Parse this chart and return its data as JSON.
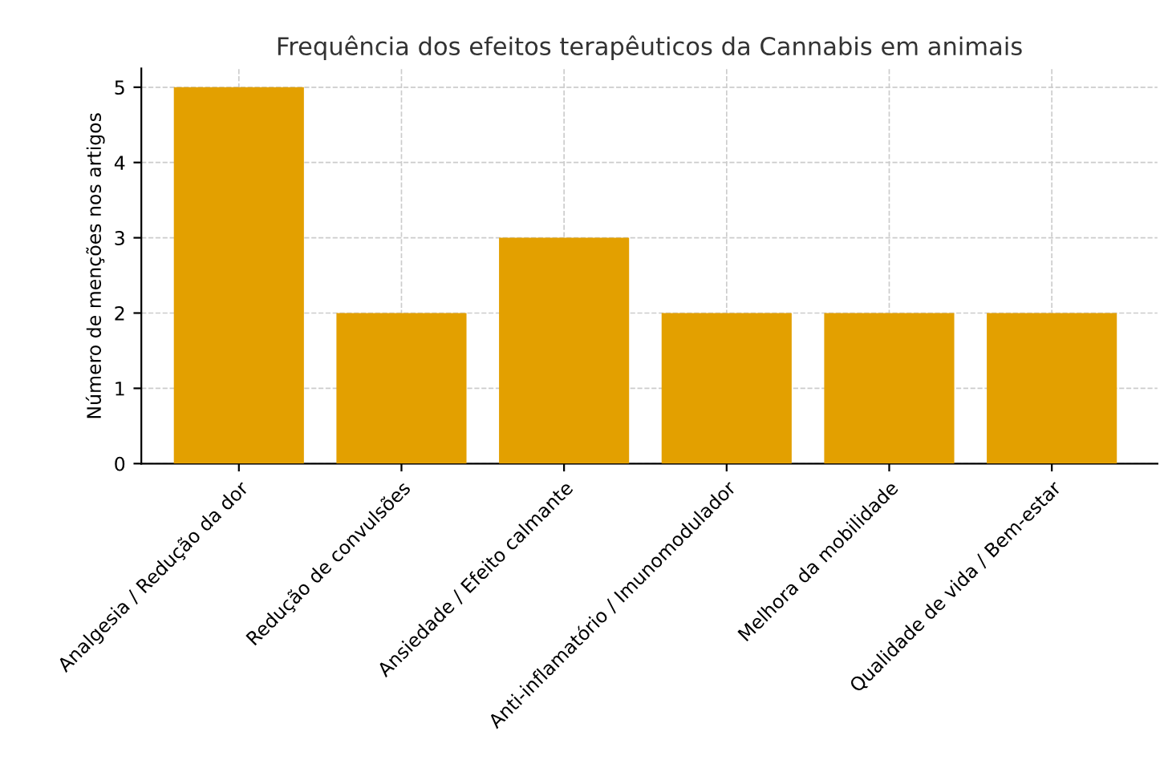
{
  "chart_data": {
    "type": "bar",
    "title": "Frequência dos efeitos terapêuticos da Cannabis em animais",
    "ylabel": "Número de menções nos artigos",
    "categories": [
      "Analgesia / Redução da dor",
      "Redução de convulsões",
      "Ansiedade / Efeito calmante",
      "Anti-inflamatório / Imunomodulador",
      "Melhora da mobilidade",
      "Qualidade de vida / Bem-estar"
    ],
    "values": [
      5,
      2,
      3,
      2,
      2,
      2
    ],
    "color": "#e3a000",
    "ylim": [
      0,
      5.25
    ],
    "yticks": [
      0,
      1,
      2,
      3,
      4,
      5
    ],
    "grid": true
  }
}
